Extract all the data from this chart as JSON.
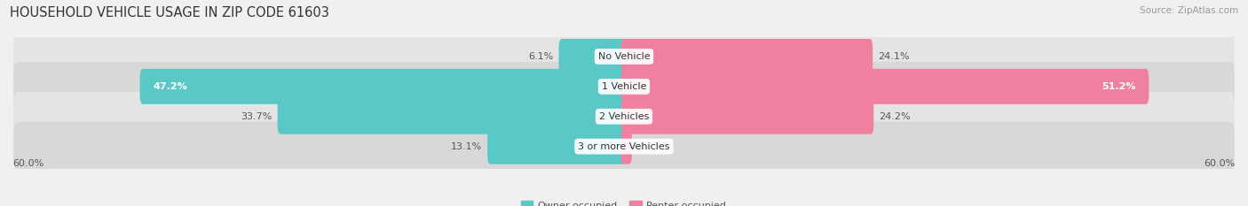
{
  "title": "HOUSEHOLD VEHICLE USAGE IN ZIP CODE 61603",
  "source": "Source: ZipAtlas.com",
  "categories": [
    "No Vehicle",
    "1 Vehicle",
    "2 Vehicles",
    "3 or more Vehicles"
  ],
  "owner_values": [
    6.1,
    47.2,
    33.7,
    13.1
  ],
  "renter_values": [
    24.1,
    51.2,
    24.2,
    0.47
  ],
  "owner_color": "#5BC8C8",
  "renter_color": "#F080A0",
  "label_color": "#555555",
  "axis_max": 60.0,
  "background_color": "#f0f0f0",
  "row_bg_odd": "#e8e8e8",
  "row_bg_even": "#d8d8d8",
  "bar_height": 0.58,
  "legend_labels": [
    "Owner-occupied",
    "Renter-occupied"
  ],
  "axis_label": "60.0%",
  "title_fontsize": 10.5,
  "source_fontsize": 7.5,
  "label_fontsize": 8,
  "category_fontsize": 8,
  "owner_label_inside": [
    false,
    true,
    false,
    false
  ],
  "renter_label_inside": [
    false,
    true,
    false,
    false
  ]
}
